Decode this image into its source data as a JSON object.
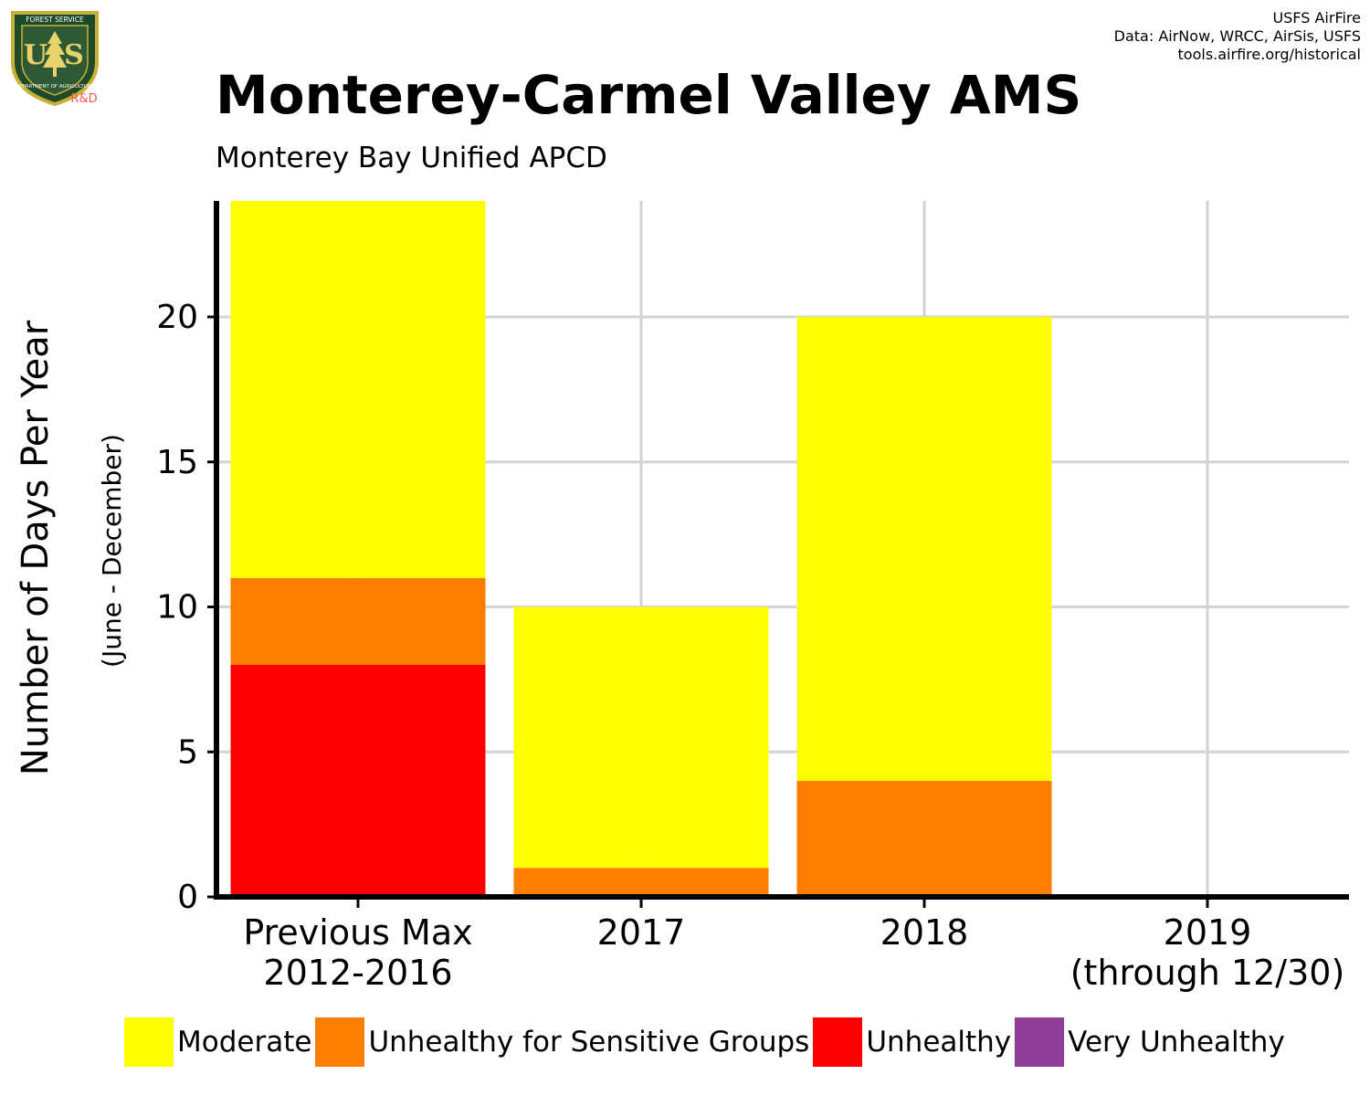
{
  "credits": {
    "line1": "USFS AirFire",
    "line2": "Data: AirNow, WRCC, AirSis, USFS",
    "line3": "tools.airfire.org/historical"
  },
  "logo": {
    "top_text": "FOREST SERVICE",
    "letters": "US",
    "bottom_text": "DEPARTMENT OF AGRICULTURE",
    "badge_text": "R&D"
  },
  "chart_data": {
    "type": "bar",
    "stacked": true,
    "title": "Monterey-Carmel Valley AMS",
    "subtitle": "Monterey Bay Unified APCD",
    "ylabel": "Number of Days Per Year",
    "ylabel_sub": "(June - December)",
    "ylim": [
      0,
      24
    ],
    "yticks": [
      0,
      5,
      10,
      15,
      20
    ],
    "grid": true,
    "legend_position": "bottom",
    "categories": [
      [
        "Previous Max",
        "2012-2016"
      ],
      [
        "2017"
      ],
      [
        "2018"
      ],
      [
        "2019",
        "(through 12/30)"
      ]
    ],
    "series": [
      {
        "name": "Unhealthy",
        "color": "#ff0000",
        "values": [
          8,
          0,
          0,
          0
        ]
      },
      {
        "name": "Unhealthy for Sensitive Groups",
        "color": "#ff7e00",
        "values": [
          3,
          1,
          4,
          0
        ]
      },
      {
        "name": "Moderate",
        "color": "#ffff00",
        "values": [
          13,
          9,
          16,
          0
        ]
      },
      {
        "name": "Very Unhealthy",
        "color": "#8f3f97",
        "values": [
          0,
          0,
          0,
          0
        ]
      }
    ],
    "legend_order": [
      {
        "name": "Moderate",
        "color": "#ffff00"
      },
      {
        "name": "Unhealthy for Sensitive Groups",
        "color": "#ff7e00"
      },
      {
        "name": "Unhealthy",
        "color": "#ff0000"
      },
      {
        "name": "Very Unhealthy",
        "color": "#8f3f97"
      }
    ]
  }
}
